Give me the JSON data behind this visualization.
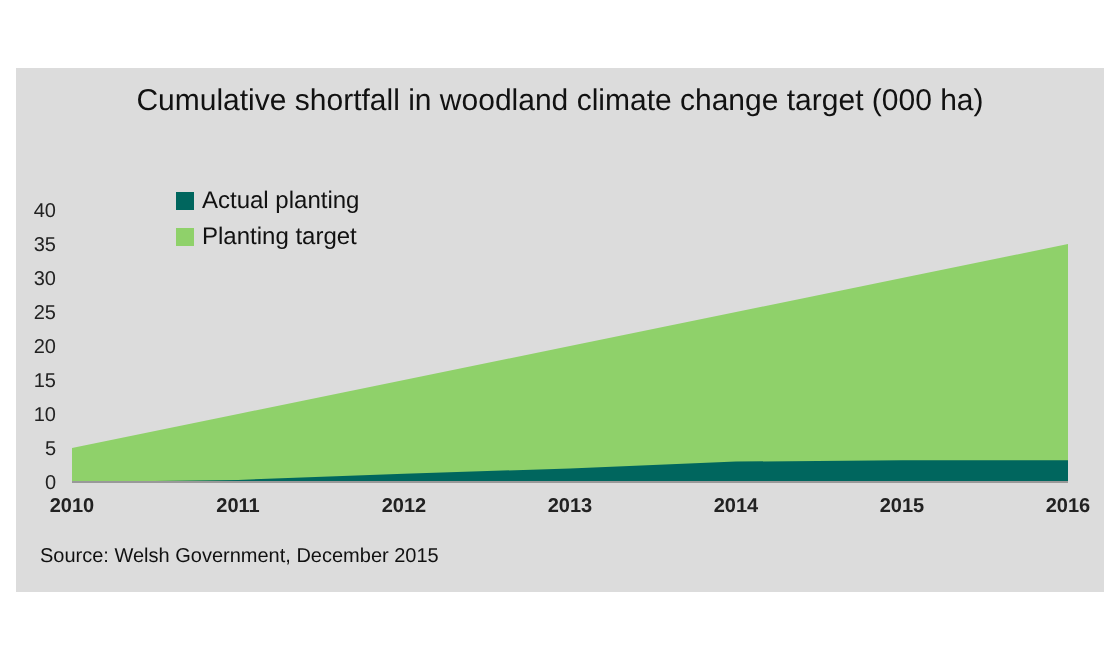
{
  "chart_data": {
    "type": "area",
    "title": "Cumulative shortfall in woodland climate change target (000 ha)",
    "categories": [
      "2010",
      "2011",
      "2012",
      "2013",
      "2014",
      "2015",
      "2016"
    ],
    "series": [
      {
        "name": "Actual planting",
        "color": "#00665e",
        "values": [
          0,
          0.3,
          1.2,
          2,
          3,
          3.2,
          3.2
        ]
      },
      {
        "name": "Planting target",
        "color": "#8fd16a",
        "values": [
          5,
          10,
          15,
          20,
          25,
          30,
          35
        ]
      }
    ],
    "ylim": [
      0,
      40
    ],
    "yticks": [
      0,
      5,
      10,
      15,
      20,
      25,
      30,
      35,
      40
    ],
    "grid": false,
    "legend": "top left",
    "annotations": [
      "Source: Welsh Government, December 2015"
    ]
  }
}
